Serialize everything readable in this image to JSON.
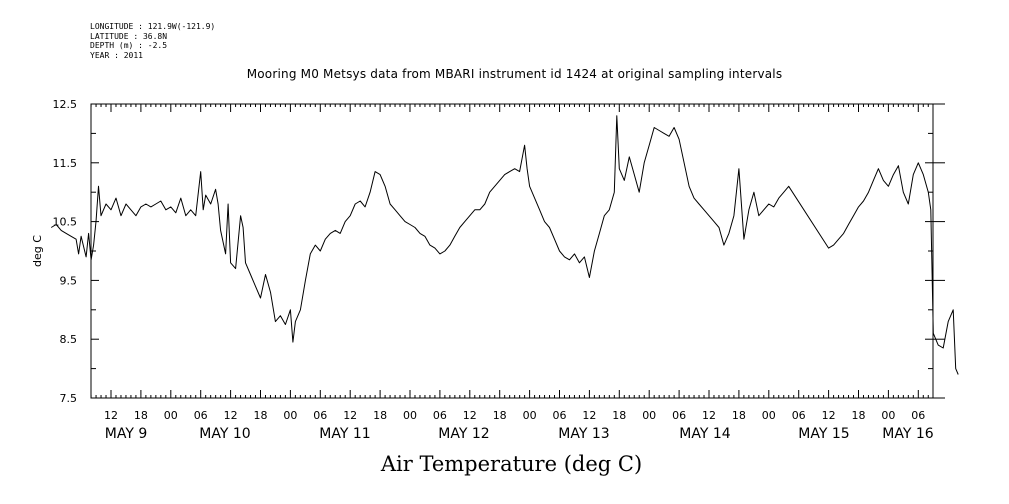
{
  "metadata": {
    "longitude": "LONGITUDE : 121.9W(-121.9)",
    "latitude": "LATITUDE : 36.8N",
    "depth": "DEPTH (m) : -2.5",
    "year": "YEAR : 2011"
  },
  "chart_data": {
    "type": "line",
    "title": "Mooring M0 Metsys data from MBARI instrument id 1424 at original sampling intervals",
    "ylabel": "deg C",
    "xlabel": "Air Temperature (deg C)",
    "ylim": [
      7.5,
      12.5
    ],
    "yticks": [
      "7.5",
      "8.5",
      "9.5",
      "10.5",
      "11.5",
      "12.5"
    ],
    "xlim_hours": [
      0,
      182
    ],
    "hour_ticks": [
      "12",
      "18",
      "00",
      "06",
      "12",
      "18",
      "00",
      "06",
      "12",
      "18",
      "00",
      "06",
      "12",
      "18",
      "00",
      "06",
      "12",
      "18",
      "00",
      "06",
      "12",
      "18",
      "00",
      "06",
      "12",
      "18",
      "00",
      "06"
    ],
    "day_labels": [
      "MAY  9",
      "MAY 10",
      "MAY 11",
      "MAY 12",
      "MAY 13",
      "MAY 14",
      "MAY 15",
      "MAY 16"
    ],
    "grid": false,
    "series": [
      {
        "color": "#000000",
        "points": [
          [
            0,
            10.4
          ],
          [
            1,
            10.45
          ],
          [
            2,
            10.35
          ],
          [
            3,
            10.3
          ],
          [
            4,
            10.25
          ],
          [
            5,
            10.2
          ],
          [
            5.5,
            9.95
          ],
          [
            6,
            10.25
          ],
          [
            7,
            9.9
          ],
          [
            7.5,
            10.3
          ],
          [
            8,
            9.85
          ],
          [
            8.5,
            10.1
          ],
          [
            9,
            10.5
          ],
          [
            9.5,
            11.1
          ],
          [
            10,
            10.6
          ],
          [
            11,
            10.8
          ],
          [
            12,
            10.7
          ],
          [
            13,
            10.9
          ],
          [
            14,
            10.6
          ],
          [
            15,
            10.8
          ],
          [
            16,
            10.7
          ],
          [
            17,
            10.6
          ],
          [
            18,
            10.75
          ],
          [
            19,
            10.8
          ],
          [
            20,
            10.75
          ],
          [
            21,
            10.8
          ],
          [
            22,
            10.85
          ],
          [
            23,
            10.7
          ],
          [
            24,
            10.75
          ],
          [
            25,
            10.65
          ],
          [
            26,
            10.9
          ],
          [
            27,
            10.6
          ],
          [
            28,
            10.7
          ],
          [
            29,
            10.6
          ],
          [
            30,
            11.35
          ],
          [
            30.5,
            10.7
          ],
          [
            31,
            10.95
          ],
          [
            32,
            10.8
          ],
          [
            33,
            11.05
          ],
          [
            33.5,
            10.8
          ],
          [
            34,
            10.35
          ],
          [
            35,
            9.95
          ],
          [
            35.5,
            10.8
          ],
          [
            36,
            9.8
          ],
          [
            37,
            9.7
          ],
          [
            38,
            10.6
          ],
          [
            38.5,
            10.4
          ],
          [
            39,
            9.8
          ],
          [
            40,
            9.6
          ],
          [
            41,
            9.4
          ],
          [
            42,
            9.2
          ],
          [
            43,
            9.6
          ],
          [
            44,
            9.3
          ],
          [
            45,
            8.8
          ],
          [
            46,
            8.9
          ],
          [
            47,
            8.75
          ],
          [
            48,
            9.0
          ],
          [
            48.5,
            8.45
          ],
          [
            49,
            8.8
          ],
          [
            50,
            9.0
          ],
          [
            51,
            9.5
          ],
          [
            52,
            9.95
          ],
          [
            53,
            10.1
          ],
          [
            54,
            10.0
          ],
          [
            55,
            10.2
          ],
          [
            56,
            10.3
          ],
          [
            57,
            10.35
          ],
          [
            58,
            10.3
          ],
          [
            59,
            10.5
          ],
          [
            60,
            10.6
          ],
          [
            61,
            10.8
          ],
          [
            62,
            10.85
          ],
          [
            63,
            10.75
          ],
          [
            64,
            11.0
          ],
          [
            65,
            11.35
          ],
          [
            66,
            11.3
          ],
          [
            67,
            11.1
          ],
          [
            68,
            10.8
          ],
          [
            69,
            10.7
          ],
          [
            70,
            10.6
          ],
          [
            71,
            10.5
          ],
          [
            72,
            10.45
          ],
          [
            73,
            10.4
          ],
          [
            74,
            10.3
          ],
          [
            75,
            10.25
          ],
          [
            76,
            10.1
          ],
          [
            77,
            10.05
          ],
          [
            78,
            9.95
          ],
          [
            79,
            10.0
          ],
          [
            80,
            10.1
          ],
          [
            81,
            10.25
          ],
          [
            82,
            10.4
          ],
          [
            83,
            10.5
          ],
          [
            84,
            10.6
          ],
          [
            85,
            10.7
          ],
          [
            86,
            10.7
          ],
          [
            87,
            10.8
          ],
          [
            88,
            11.0
          ],
          [
            89,
            11.1
          ],
          [
            90,
            11.2
          ],
          [
            91,
            11.3
          ],
          [
            92,
            11.35
          ],
          [
            93,
            11.4
          ],
          [
            94,
            11.35
          ],
          [
            95,
            11.8
          ],
          [
            95.5,
            11.4
          ],
          [
            96,
            11.1
          ],
          [
            97,
            10.9
          ],
          [
            98,
            10.7
          ],
          [
            99,
            10.5
          ],
          [
            100,
            10.4
          ],
          [
            101,
            10.2
          ],
          [
            102,
            10.0
          ],
          [
            103,
            9.9
          ],
          [
            104,
            9.85
          ],
          [
            105,
            9.95
          ],
          [
            106,
            9.8
          ],
          [
            107,
            9.9
          ],
          [
            108,
            9.55
          ],
          [
            109,
            10.0
          ],
          [
            110,
            10.3
          ],
          [
            111,
            10.6
          ],
          [
            112,
            10.7
          ],
          [
            113,
            11.0
          ],
          [
            113.5,
            12.3
          ],
          [
            114,
            11.4
          ],
          [
            115,
            11.2
          ],
          [
            116,
            11.6
          ],
          [
            117,
            11.3
          ],
          [
            118,
            11.0
          ],
          [
            119,
            11.5
          ],
          [
            120,
            11.8
          ],
          [
            121,
            12.1
          ],
          [
            122,
            12.05
          ],
          [
            123,
            12.0
          ],
          [
            124,
            11.95
          ],
          [
            125,
            12.1
          ],
          [
            126,
            11.9
          ],
          [
            127,
            11.5
          ],
          [
            128,
            11.1
          ],
          [
            129,
            10.9
          ],
          [
            130,
            10.8
          ],
          [
            131,
            10.7
          ],
          [
            132,
            10.6
          ],
          [
            133,
            10.5
          ],
          [
            134,
            10.4
          ],
          [
            135,
            10.1
          ],
          [
            136,
            10.3
          ],
          [
            137,
            10.6
          ],
          [
            138,
            11.4
          ],
          [
            139,
            10.2
          ],
          [
            140,
            10.7
          ],
          [
            141,
            11.0
          ],
          [
            142,
            10.6
          ],
          [
            143,
            10.7
          ],
          [
            144,
            10.8
          ],
          [
            145,
            10.75
          ],
          [
            146,
            10.9
          ],
          [
            147,
            11.0
          ],
          [
            148,
            11.1
          ],
          [
            156,
            10.05
          ],
          [
            157,
            10.1
          ],
          [
            158,
            10.2
          ],
          [
            159,
            10.3
          ],
          [
            160,
            10.45
          ],
          [
            161,
            10.6
          ],
          [
            162,
            10.75
          ],
          [
            163,
            10.85
          ],
          [
            164,
            11.0
          ],
          [
            165,
            11.2
          ],
          [
            166,
            11.4
          ],
          [
            167,
            11.2
          ],
          [
            168,
            11.1
          ],
          [
            169,
            11.3
          ],
          [
            170,
            11.45
          ],
          [
            171,
            11.0
          ],
          [
            172,
            10.8
          ],
          [
            173,
            11.3
          ],
          [
            174,
            11.5
          ],
          [
            175,
            11.3
          ],
          [
            176,
            11.0
          ],
          [
            176.5,
            10.7
          ],
          [
            177,
            8.6
          ],
          [
            178,
            8.4
          ],
          [
            179,
            8.35
          ],
          [
            180,
            8.8
          ],
          [
            181,
            9.0
          ],
          [
            181.5,
            8.0
          ],
          [
            182,
            7.9
          ]
        ]
      }
    ]
  }
}
